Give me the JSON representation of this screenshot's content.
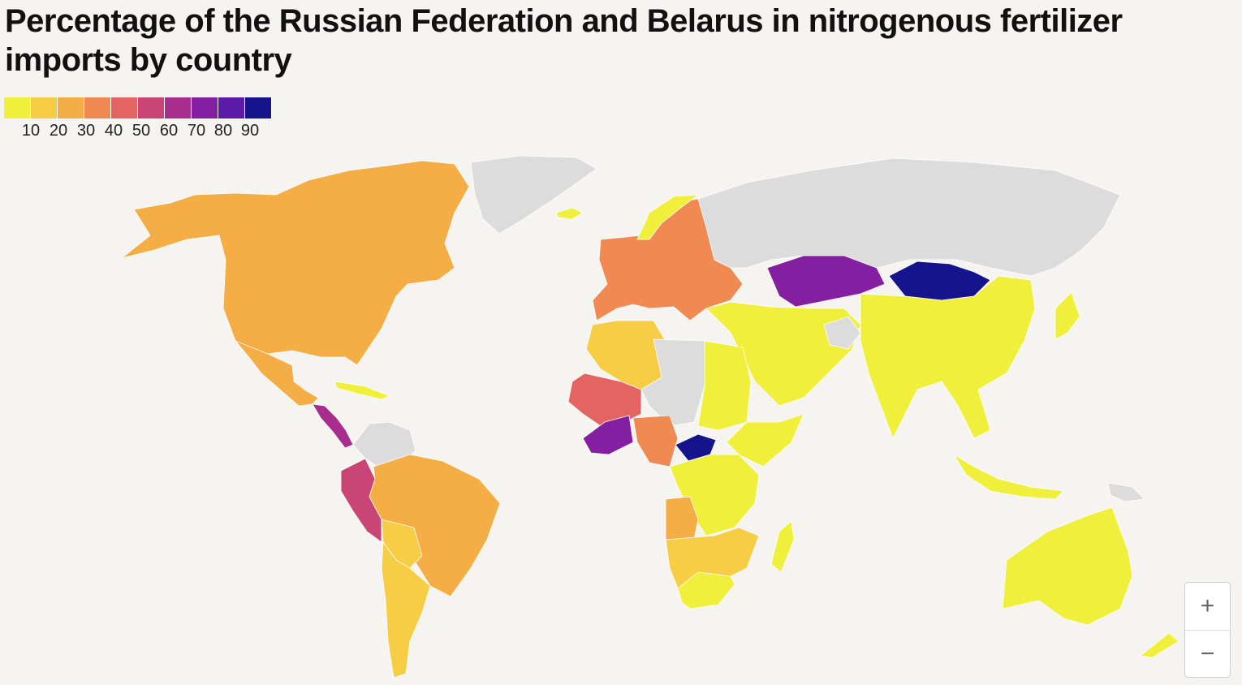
{
  "title": "Percentage of the Russian Federation and Belarus in nitrogenous fertilizer imports by country",
  "legend": {
    "colors": [
      "#f0f03c",
      "#f7cd46",
      "#f5ad46",
      "#f08a52",
      "#e36460",
      "#c94574",
      "#a82d8c",
      "#851fa1",
      "#5c1aa8",
      "#16148c"
    ],
    "ticks": [
      "10",
      "20",
      "30",
      "40",
      "50",
      "60",
      "70",
      "80",
      "90"
    ]
  },
  "no_data_color": "#dcdcdc",
  "zoom": {
    "in_label": "+",
    "out_label": "−"
  }
}
